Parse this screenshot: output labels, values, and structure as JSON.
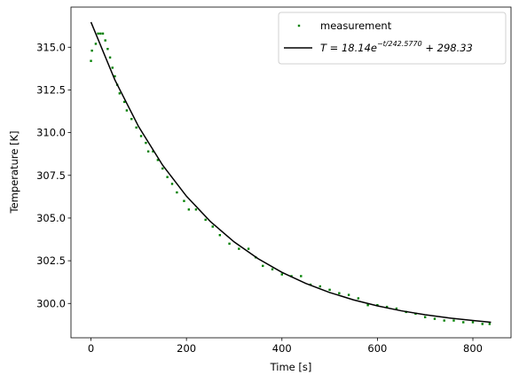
{
  "chart_data": {
    "type": "line",
    "xlabel": "Time [s]",
    "ylabel": "Temperature [K]",
    "xlim": [
      -41.9,
      879.9
    ],
    "ylim": [
      297.99,
      317.35
    ],
    "xticks": [
      0,
      200,
      400,
      600,
      800
    ],
    "yticks": [
      {
        "value": 300,
        "label": "300.0"
      },
      302.5,
      {
        "value": 305,
        "label": "305.0"
      },
      307.5,
      {
        "value": 310,
        "label": "310.0"
      },
      312.5,
      {
        "value": 315,
        "label": "315.0"
      }
    ],
    "legend": "upper right",
    "series": [
      {
        "type": "scatter",
        "name": "measurement",
        "color": "#008000",
        "x": [
          0,
          2,
          10,
          15,
          20,
          25,
          30,
          35,
          40,
          45,
          50,
          55,
          60,
          70,
          75,
          85,
          95,
          105,
          115,
          120,
          130,
          140,
          150,
          160,
          170,
          180,
          195,
          205,
          220,
          240,
          255,
          270,
          290,
          310,
          330,
          345,
          360,
          380,
          400,
          420,
          440,
          460,
          480,
          500,
          520,
          540,
          560,
          580,
          600,
          620,
          640,
          660,
          680,
          700,
          720,
          740,
          760,
          780,
          800,
          820,
          835
        ],
        "y": [
          314.2,
          314.8,
          315.2,
          315.8,
          315.8,
          315.8,
          315.4,
          314.9,
          314.4,
          313.8,
          313.3,
          312.8,
          312.3,
          311.8,
          311.3,
          310.8,
          310.3,
          309.8,
          309.4,
          308.9,
          308.9,
          308.4,
          307.9,
          307.4,
          307.0,
          306.5,
          306.0,
          305.5,
          305.5,
          304.9,
          304.5,
          304.0,
          303.5,
          303.2,
          303.2,
          302.7,
          302.2,
          302.0,
          301.7,
          301.6,
          301.6,
          301.1,
          301.0,
          300.8,
          300.6,
          300.5,
          300.3,
          299.9,
          299.9,
          299.8,
          299.7,
          299.5,
          299.4,
          299.2,
          299.1,
          299.0,
          299.0,
          298.9,
          298.9,
          298.8,
          298.8
        ]
      },
      {
        "type": "line",
        "name": {
          "base": "T = 18.14e",
          "exponent": "−t/242.5770",
          "rest": " + 298.33"
        },
        "color": "#000000",
        "x": [
          0,
          50,
          100,
          150,
          200,
          250,
          300,
          350,
          400,
          450,
          500,
          550,
          600,
          650,
          700,
          750,
          800,
          838
        ],
        "y": [
          316.47,
          313.09,
          310.34,
          308.1,
          306.28,
          304.8,
          303.6,
          302.62,
          301.82,
          301.17,
          300.64,
          300.21,
          299.86,
          299.57,
          299.34,
          299.15,
          299.0,
          298.9
        ]
      }
    ]
  }
}
